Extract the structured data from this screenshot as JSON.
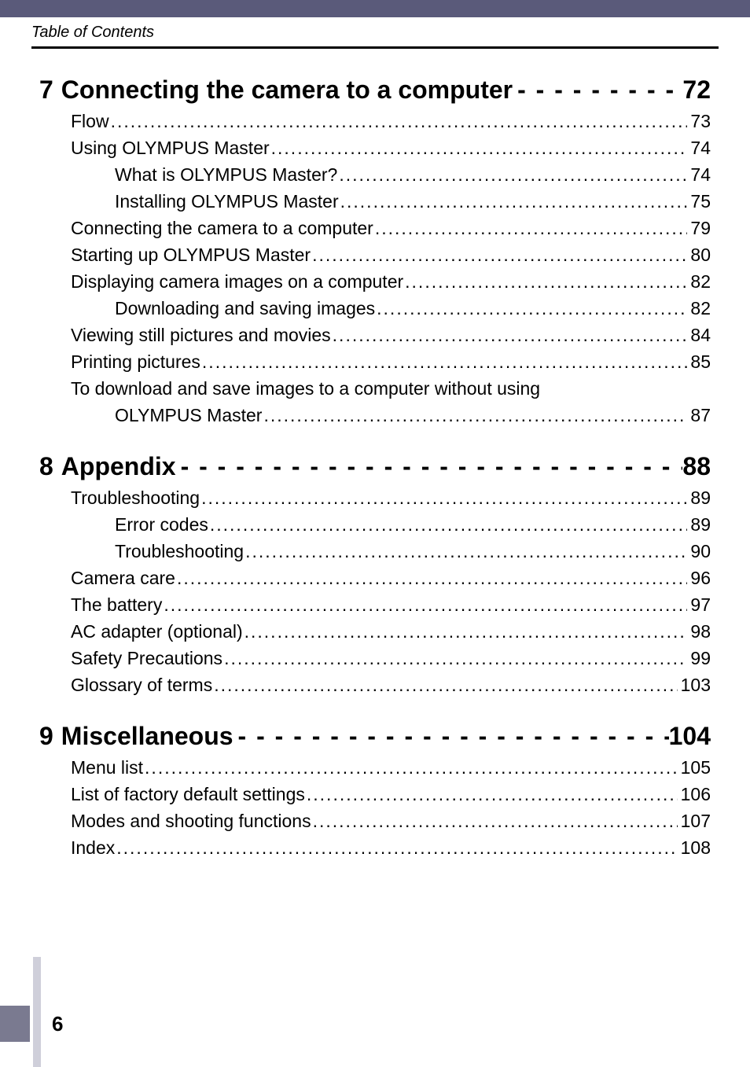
{
  "header_label": "Table of Contents",
  "page_number": "6",
  "sections": [
    {
      "number": "7",
      "title": "Connecting the camera to a computer",
      "page": "72",
      "entries": [
        {
          "label": "Flow",
          "page": "73",
          "indent": 0
        },
        {
          "label": "Using OLYMPUS Master",
          "page": "74",
          "indent": 0
        },
        {
          "label": "What is OLYMPUS Master?",
          "page": "74",
          "indent": 1
        },
        {
          "label": "Installing OLYMPUS Master",
          "page": "75",
          "indent": 1
        },
        {
          "label": "Connecting the camera to a computer",
          "page": "79",
          "indent": 0
        },
        {
          "label": "Starting up OLYMPUS Master",
          "page": "80",
          "indent": 0
        },
        {
          "label": "Displaying camera images on a computer",
          "page": "82",
          "indent": 0
        },
        {
          "label": "Downloading and saving images",
          "page": "82",
          "indent": 1
        },
        {
          "label": "Viewing still pictures and movies",
          "page": "84",
          "indent": 0
        },
        {
          "label": "Printing pictures",
          "page": "85",
          "indent": 0
        },
        {
          "label": "To download and save images to a computer without using",
          "wrap_label": "OLYMPUS Master",
          "page": "87",
          "indent": 0
        }
      ]
    },
    {
      "number": "8",
      "title": "Appendix",
      "page": "88",
      "entries": [
        {
          "label": "Troubleshooting",
          "page": "89",
          "indent": 0
        },
        {
          "label": "Error codes",
          "page": "89",
          "indent": 1
        },
        {
          "label": "Troubleshooting",
          "page": "90",
          "indent": 1
        },
        {
          "label": "Camera care",
          "page": "96",
          "indent": 0
        },
        {
          "label": "The battery",
          "page": "97",
          "indent": 0
        },
        {
          "label": "AC adapter (optional)",
          "page": "98",
          "indent": 0
        },
        {
          "label": "Safety Precautions",
          "page": "99",
          "indent": 0
        },
        {
          "label": "Glossary of terms",
          "page": "103",
          "indent": 0
        }
      ]
    },
    {
      "number": "9",
      "title": "Miscellaneous",
      "page": "104",
      "entries": [
        {
          "label": "Menu list",
          "page": "105",
          "indent": 0
        },
        {
          "label": "List of factory default settings",
          "page": "106",
          "indent": 0
        },
        {
          "label": "Modes and shooting functions",
          "page": "107",
          "indent": 0
        },
        {
          "label": "Index",
          "page": "108",
          "indent": 0
        }
      ]
    }
  ]
}
